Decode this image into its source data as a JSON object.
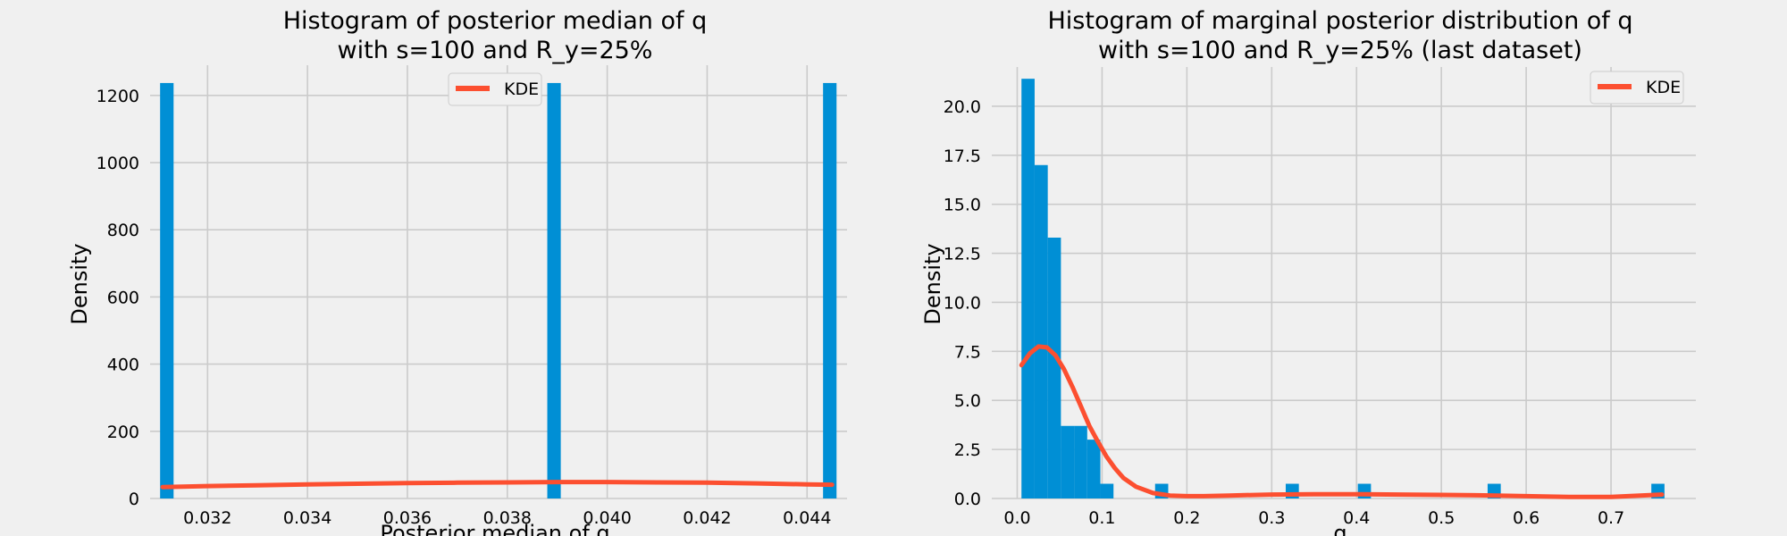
{
  "chart_data": [
    {
      "type": "bar",
      "title": [
        "Histogram of posterior median of q",
        "with s=100 and R_y=25%"
      ],
      "xlabel": "Posterior median of q",
      "ylabel": "Density",
      "xlim": [
        0.03085,
        0.0448
      ],
      "ylim": [
        0,
        1290
      ],
      "xticks": [
        "0.032",
        "0.034",
        "0.036",
        "0.038",
        "0.040",
        "0.042",
        "0.044"
      ],
      "yticks": [
        "0",
        "200",
        "400",
        "600",
        "800",
        "1000",
        "1200"
      ],
      "grid": true,
      "legend": {
        "placement": "top-center",
        "entries": [
          "KDE"
        ]
      },
      "bars": [
        {
          "x0": 0.03105,
          "x1": 0.03132,
          "height": 1237
        },
        {
          "x0": 0.0388,
          "x1": 0.03907,
          "height": 1237
        },
        {
          "x0": 0.04432,
          "x1": 0.04459,
          "height": 1237
        }
      ],
      "series": [
        {
          "name": "KDE",
          "x": [
            0.0311,
            0.032,
            0.033,
            0.034,
            0.035,
            0.036,
            0.037,
            0.038,
            0.039,
            0.04,
            0.041,
            0.042,
            0.043,
            0.044,
            0.0445
          ],
          "y": [
            34,
            37,
            39,
            42,
            44,
            46,
            47,
            48,
            49,
            49,
            48,
            47,
            45,
            42,
            41
          ]
        }
      ],
      "colors": {
        "bar": "#008fd5",
        "kde": "#fc4f30"
      }
    },
    {
      "type": "bar",
      "title": [
        "Histogram of marginal posterior distribution of q",
        "with s=100 and R_y=25% (last dataset)"
      ],
      "xlabel": "q",
      "ylabel": "Density",
      "xlim": [
        -0.03,
        0.8
      ],
      "ylim": [
        0,
        22
      ],
      "xticks": [
        "0.0",
        "0.1",
        "0.2",
        "0.3",
        "0.4",
        "0.5",
        "0.6",
        "0.7"
      ],
      "yticks": [
        "0.0",
        "2.5",
        "5.0",
        "7.5",
        "10.0",
        "12.5",
        "15.0",
        "17.5",
        "20.0"
      ],
      "grid": true,
      "legend": {
        "placement": "top-right",
        "entries": [
          "KDE"
        ]
      },
      "bars": [
        {
          "x0": 0.005,
          "x1": 0.0205,
          "height": 21.4
        },
        {
          "x0": 0.0205,
          "x1": 0.036,
          "height": 17.0
        },
        {
          "x0": 0.036,
          "x1": 0.0515,
          "height": 13.3
        },
        {
          "x0": 0.0515,
          "x1": 0.067,
          "height": 3.7
        },
        {
          "x0": 0.067,
          "x1": 0.0825,
          "height": 3.7
        },
        {
          "x0": 0.0825,
          "x1": 0.098,
          "height": 3.0
        },
        {
          "x0": 0.098,
          "x1": 0.1135,
          "height": 0.75
        },
        {
          "x0": 0.1625,
          "x1": 0.178,
          "height": 0.75
        },
        {
          "x0": 0.3165,
          "x1": 0.332,
          "height": 0.75
        },
        {
          "x0": 0.4015,
          "x1": 0.417,
          "height": 0.75
        },
        {
          "x0": 0.5545,
          "x1": 0.57,
          "height": 0.75
        },
        {
          "x0": 0.7475,
          "x1": 0.763,
          "height": 0.75
        }
      ],
      "series": [
        {
          "name": "KDE",
          "x": [
            0.005,
            0.015,
            0.025,
            0.035,
            0.045,
            0.055,
            0.065,
            0.075,
            0.085,
            0.095,
            0.105,
            0.115,
            0.125,
            0.14,
            0.16,
            0.18,
            0.2,
            0.22,
            0.25,
            0.3,
            0.35,
            0.4,
            0.45,
            0.5,
            0.55,
            0.6,
            0.65,
            0.7,
            0.76
          ],
          "y": [
            6.8,
            7.4,
            7.75,
            7.7,
            7.3,
            6.6,
            5.7,
            4.7,
            3.7,
            2.9,
            2.15,
            1.55,
            1.05,
            0.6,
            0.28,
            0.15,
            0.12,
            0.12,
            0.15,
            0.2,
            0.22,
            0.22,
            0.2,
            0.18,
            0.16,
            0.12,
            0.08,
            0.08,
            0.2
          ]
        }
      ],
      "colors": {
        "bar": "#008fd5",
        "kde": "#fc4f30"
      }
    }
  ]
}
